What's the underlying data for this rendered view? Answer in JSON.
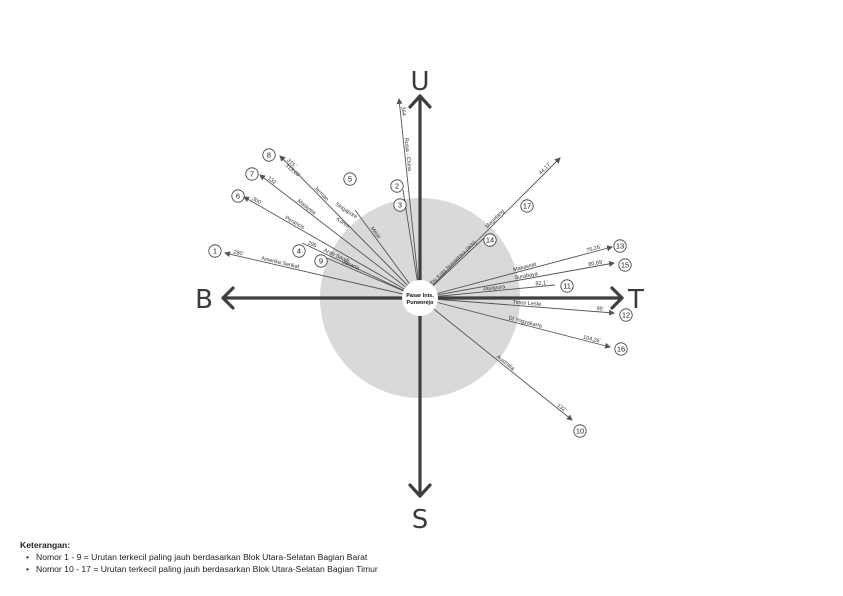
{
  "compass": {
    "north": "U",
    "south": "S",
    "east": "T",
    "west": "B"
  },
  "center_label": [
    "Pasar Inis,",
    "Purworejo"
  ],
  "colors": {
    "circle": "#d9d9d9",
    "axis": "#3f3f3f",
    "line": "#555555"
  },
  "origins": [
    {
      "id": "1",
      "label": "Amerika Serikat",
      "distance": "280`"
    },
    {
      "id": "2",
      "label": "Rusia - China",
      "distance": "364"
    },
    {
      "id": "3",
      "label": "",
      "distance": ""
    },
    {
      "id": "4",
      "label": "Arab Saudi",
      "distance": "295"
    },
    {
      "id": "5",
      "label": "Mesir",
      "distance": ""
    },
    {
      "id": "6",
      "label": "Perancis",
      "distance": "300`"
    },
    {
      "id": "7",
      "label": "Malaysia",
      "distance": "132`"
    },
    {
      "id": "8",
      "label": "Jerman",
      "distance": "315`"
    },
    {
      "id": "9",
      "label": "Jakarta",
      "distance": ""
    },
    {
      "id": "10",
      "label": "Australia",
      "distance": "132`"
    },
    {
      "id": "11",
      "label": "Jayapura",
      "distance": "82,1`"
    },
    {
      "id": "12",
      "label": "Timor Leste",
      "distance": "95`"
    },
    {
      "id": "13",
      "label": "Makassar",
      "distance": "75,26`"
    },
    {
      "id": "14",
      "label": "Ibu Kota Nusantara (IKN)",
      "distance": ""
    },
    {
      "id": "15",
      "label": "Surabaya",
      "distance": "80,89`"
    },
    {
      "id": "16",
      "label": "DI Yogyakarta",
      "distance": "104,26`"
    },
    {
      "id": "17",
      "label": "Magelang",
      "distance": "44,17`"
    }
  ],
  "extra_labels": [
    "Singapore",
    "Korea",
    "313,69`"
  ],
  "legend": {
    "title": "Keterangan:",
    "items": [
      "Nomor 1 - 9 = Urutan terkecil paling jauh berdasarkan Blok Utara-Selatan Bagian Barat",
      "Nomor 10 - 17 = Urutan terkecil paling jauh berdasarkan Blok Utara-Selatan Bagian Timur"
    ]
  }
}
